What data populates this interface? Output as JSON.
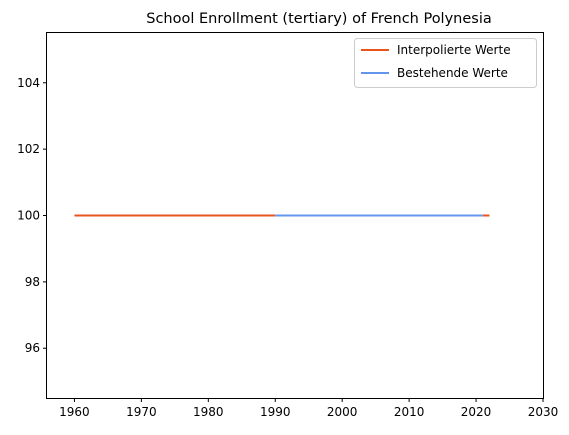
{
  "chart_data": {
    "type": "line",
    "title": "School Enrollment (tertiary) of French Polynesia",
    "xlabel": "",
    "ylabel": "",
    "xlim": [
      1955.9,
      2030
    ],
    "ylim": [
      94.5,
      105.5
    ],
    "xticks": [
      1960,
      1970,
      1980,
      1990,
      2000,
      2010,
      2020,
      2030
    ],
    "yticks": [
      96,
      98,
      100,
      102,
      104
    ],
    "grid": false,
    "legend_position": "top-right",
    "series": [
      {
        "name": "Interpolierte Werte",
        "color": "#e8541c",
        "segments": [
          [
            [
              1960,
              100
            ],
            [
              1990,
              100
            ]
          ],
          [
            [
              2021,
              100
            ],
            [
              2022,
              100
            ]
          ]
        ]
      },
      {
        "name": "Bestehende Werte",
        "color": "#6495ed",
        "segments": [
          [
            [
              1990,
              100
            ],
            [
              2021,
              100
            ]
          ]
        ]
      }
    ]
  }
}
